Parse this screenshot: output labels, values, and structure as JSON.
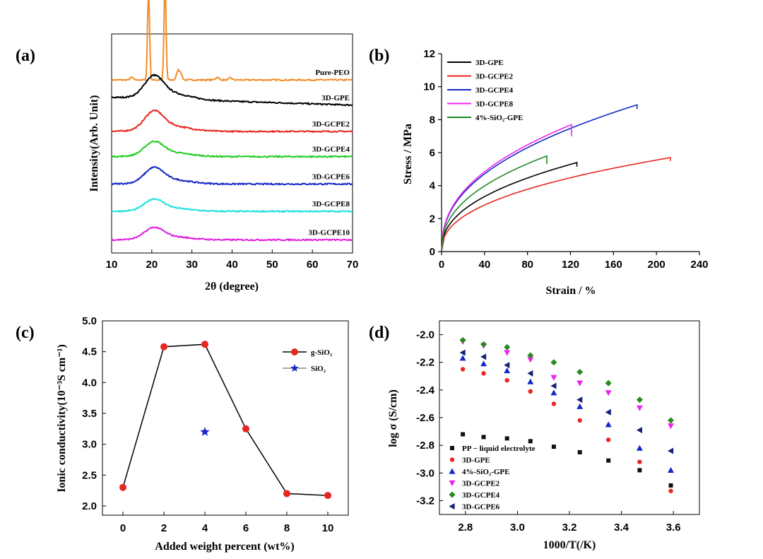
{
  "chart_data": [
    {
      "panel": "(a)",
      "type": "line",
      "xlabel": "2θ (degree)",
      "ylabel": "Intensity(Arb. Unit)",
      "xlim": [
        10,
        70
      ],
      "xticks": [
        10,
        20,
        30,
        40,
        50,
        60,
        70
      ],
      "series": [
        {
          "name": "Pure-PEO",
          "color": "#f28c28",
          "base": 0.79,
          "peaks": [
            [
              19.2,
              0.42,
              0.35
            ],
            [
              23.3,
              0.45,
              0.35
            ],
            [
              26.5,
              0.04,
              0.5
            ],
            [
              27.2,
              0.03,
              0.5
            ],
            [
              15,
              0.012,
              0.5
            ],
            [
              36.3,
              0.012,
              0.6
            ],
            [
              39.6,
              0.01,
              0.5
            ]
          ]
        },
        {
          "name": "3D-GPE",
          "color": "#000000",
          "base": 0.675,
          "hump": 0.085,
          "tail": 0.035
        },
        {
          "name": "3D-GCPE2",
          "color": "#e8261f",
          "base": 0.555,
          "hump": 0.075,
          "tail": 0.0
        },
        {
          "name": "3D-GCPE4",
          "color": "#22cc22",
          "base": 0.44,
          "hump": 0.055,
          "tail": 0.0
        },
        {
          "name": "3D-GCPE6",
          "color": "#1428c8",
          "base": 0.315,
          "hump": 0.06,
          "tail": 0.0
        },
        {
          "name": "3D-GCPE8",
          "color": "#22e0e0",
          "base": 0.19,
          "hump": 0.045,
          "tail": 0.0
        },
        {
          "name": "3D-GCPE10",
          "color": "#e020e0",
          "base": 0.06,
          "hump": 0.045,
          "tail": 0.0
        }
      ]
    },
    {
      "panel": "(b)",
      "type": "line",
      "xlabel": "Strain / %",
      "ylabel": "Stress / MPa",
      "xlim": [
        0,
        240
      ],
      "ylim": [
        0,
        12
      ],
      "xticks": [
        0,
        40,
        80,
        120,
        160,
        200,
        240
      ],
      "yticks": [
        0,
        2,
        4,
        6,
        8,
        10,
        12
      ],
      "series": [
        {
          "name": "3D-GPE",
          "color": "#000000",
          "max_strain": 126,
          "max_stress": 5.4,
          "drop": 0.25
        },
        {
          "name": "3D-GCPE2",
          "color": "#e8261f",
          "max_strain": 213,
          "max_stress": 5.7,
          "drop": 0.2
        },
        {
          "name": "3D-GCPE4",
          "color": "#1428c8",
          "max_strain": 182,
          "max_stress": 8.9,
          "drop": 0.25
        },
        {
          "name": "3D-GCPE8",
          "color": "#ee22ee",
          "max_strain": 121,
          "max_stress": 7.7,
          "drop": 0.7
        },
        {
          "name": "4%-SiO₂-GPE",
          "color": "#22882a",
          "max_strain": 98,
          "max_stress": 5.8,
          "drop": 0.5
        }
      ]
    },
    {
      "panel": "(c)",
      "type": "line",
      "xlabel": "Added weight percent (wt%)",
      "ylabel": "Ionic conductivity(10⁻³S cm⁻¹)",
      "xlim": [
        -1,
        11
      ],
      "ylim": [
        1.85,
        5.0
      ],
      "xticks": [
        0,
        2,
        4,
        6,
        8,
        10
      ],
      "yticks": [
        2.0,
        2.5,
        3.0,
        3.5,
        4.0,
        4.5,
        5.0
      ],
      "series": [
        {
          "name": "g-SiO₂",
          "x": [
            0,
            2,
            4,
            6,
            8,
            10
          ],
          "y": [
            2.3,
            4.58,
            4.62,
            3.25,
            2.2,
            2.17
          ],
          "color": "#e8261f"
        },
        {
          "name": "SiO₂",
          "x": [
            4
          ],
          "y": [
            3.2
          ],
          "color": "#1428c8"
        }
      ]
    },
    {
      "panel": "(d)",
      "type": "scatter",
      "xlabel": "1000/T(/K)",
      "ylabel": "log σ (S/cm)",
      "xlim": [
        2.7,
        3.7
      ],
      "ylim": [
        -3.3,
        -1.9
      ],
      "xticks": [
        2.8,
        3.0,
        3.2,
        3.4,
        3.6
      ],
      "yticks": [
        -3.2,
        -3.0,
        -2.8,
        -2.6,
        -2.4,
        -2.2,
        -2.0
      ],
      "x": [
        2.79,
        2.87,
        2.96,
        3.05,
        3.14,
        3.24,
        3.35,
        3.47,
        3.59
      ],
      "series": [
        {
          "name": "PP − liquid electrolyte",
          "marker": "square",
          "color": "#111111",
          "y": [
            -2.72,
            -2.74,
            -2.75,
            -2.77,
            -2.81,
            -2.85,
            -2.91,
            -2.98,
            -3.09
          ]
        },
        {
          "name": "3D-GPE",
          "marker": "circle",
          "color": "#e8261f",
          "y": [
            -2.25,
            -2.28,
            -2.33,
            -2.41,
            -2.5,
            -2.62,
            -2.76,
            -2.92,
            -3.13
          ]
        },
        {
          "name": "4%-SiO₂-GPE",
          "marker": "triangle-up",
          "color": "#1428c8",
          "y": [
            -2.17,
            -2.21,
            -2.26,
            -2.34,
            -2.42,
            -2.52,
            -2.65,
            -2.82,
            -2.98
          ]
        },
        {
          "name": "3D-GCPE2",
          "marker": "triangle-down",
          "color": "#ee22ee",
          "y": [
            -2.05,
            -2.08,
            -2.13,
            -2.18,
            -2.31,
            -2.35,
            -2.42,
            -2.53,
            -2.66
          ]
        },
        {
          "name": "3D-GCPE4",
          "marker": "diamond",
          "color": "#2a8a1e",
          "y": [
            -2.04,
            -2.07,
            -2.09,
            -2.15,
            -2.2,
            -2.27,
            -2.35,
            -2.47,
            -2.62
          ]
        },
        {
          "name": "3D-GCPE6",
          "marker": "triangle-left",
          "color": "#16227a",
          "y": [
            -2.13,
            -2.16,
            -2.22,
            -2.28,
            -2.37,
            -2.47,
            -2.56,
            -2.69,
            -2.84
          ]
        }
      ]
    }
  ]
}
